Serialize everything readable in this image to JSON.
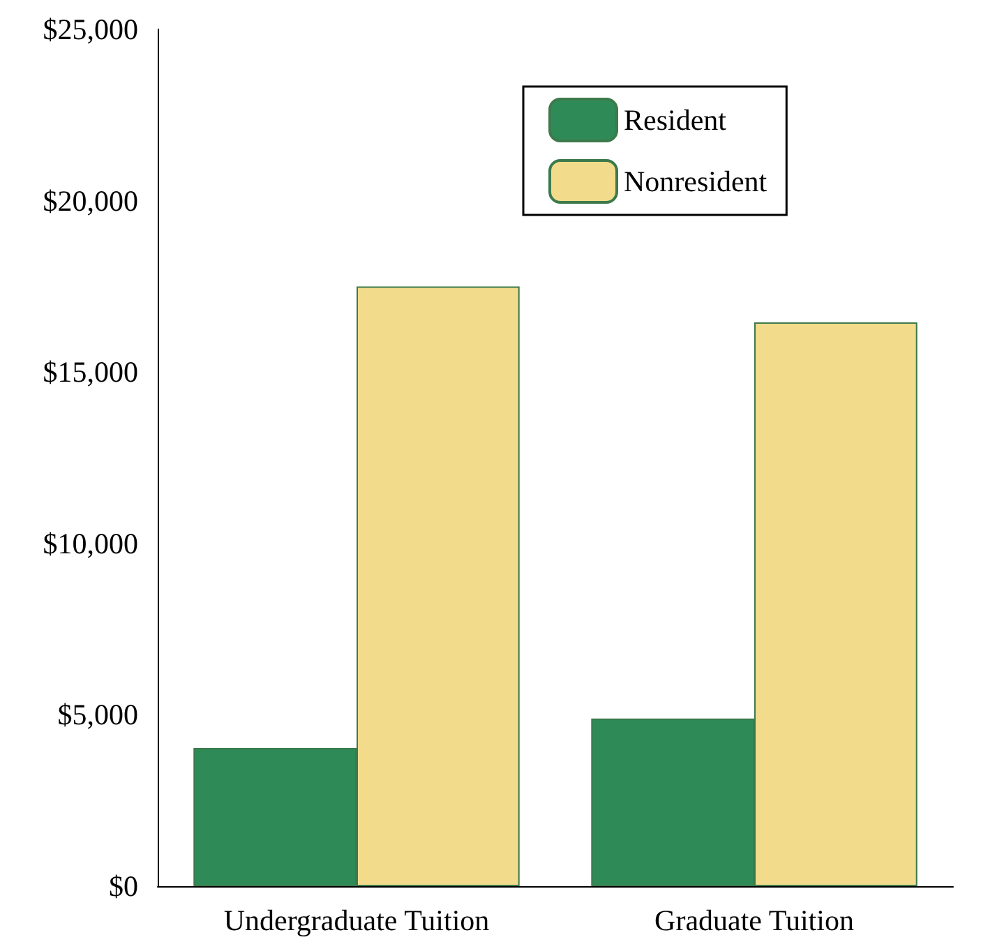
{
  "chart_data": {
    "type": "bar",
    "categories": [
      "Undergraduate Tuition",
      "Graduate Tuition"
    ],
    "series": [
      {
        "name": "Resident",
        "color": "#2e8b57",
        "values": [
          4030,
          4890
        ]
      },
      {
        "name": "Nonresident",
        "color": "#f2dc8c",
        "values": [
          17500,
          16450
        ]
      }
    ],
    "ylim": [
      0,
      25000
    ],
    "yticks": [
      {
        "value": 0,
        "label": "$0"
      },
      {
        "value": 5000,
        "label": "$5,000"
      },
      {
        "value": 10000,
        "label": "$10,000"
      },
      {
        "value": 15000,
        "label": "$15,000"
      },
      {
        "value": 20000,
        "label": "$20,000"
      },
      {
        "value": 25000,
        "label": "$25,000"
      }
    ],
    "grid": false,
    "legend": "top right"
  }
}
